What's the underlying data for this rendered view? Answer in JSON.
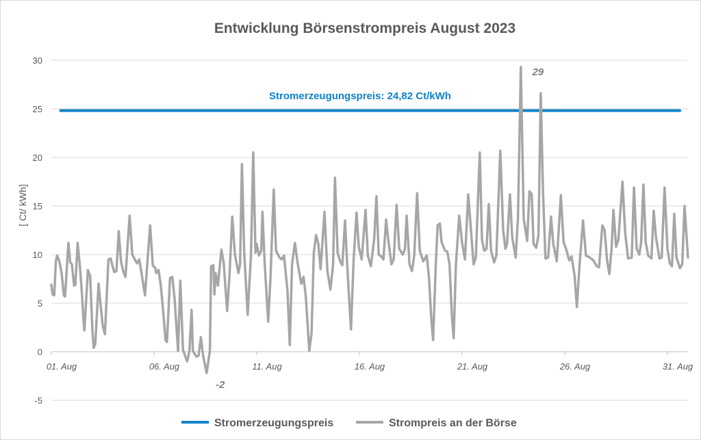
{
  "chart_data": {
    "type": "line",
    "title": "Entwicklung Börsenstrompreis August 2023",
    "ylabel": "[ Ct/ kWh]",
    "xlabel": "",
    "ylim": [
      -5,
      30
    ],
    "yticks": [
      -5,
      0,
      5,
      10,
      15,
      20,
      25,
      30
    ],
    "xlim_days": [
      0,
      31
    ],
    "xticks": [
      {
        "day": 0,
        "label": "01. Aug"
      },
      {
        "day": 5,
        "label": "06. Aug"
      },
      {
        "day": 10,
        "label": "11. Aug"
      },
      {
        "day": 15,
        "label": "16. Aug"
      },
      {
        "day": 20,
        "label": "21. Aug"
      },
      {
        "day": 25,
        "label": "26. Aug"
      },
      {
        "day": 30,
        "label": "31. Aug"
      }
    ],
    "grid": "horizontal",
    "legend_position": "bottom",
    "reference_line": {
      "name": "Stromerzeugungspreis",
      "value": 24.82,
      "label": "Stromerzeugungspreis: 24,82 Ct/kWh",
      "color": "#0f82c5"
    },
    "annotations": [
      {
        "text": "29",
        "day": 22.86,
        "value": 29.3
      },
      {
        "text": "-2",
        "day": 7.56,
        "value": -2.2
      }
    ],
    "series": [
      {
        "name": "Stromerzeugungspreis",
        "color": "#0f82c5",
        "values": [
          [
            0.45,
            24.82
          ],
          [
            30.6,
            24.82
          ]
        ]
      },
      {
        "name": "Strompreis an der Börse",
        "color": "#a6a6a6",
        "values": [
          [
            0,
            6.9
          ],
          [
            0.06,
            5.9
          ],
          [
            0.14,
            5.8
          ],
          [
            0.22,
            9.3
          ],
          [
            0.28,
            9.9
          ],
          [
            0.39,
            9.3
          ],
          [
            0.5,
            8.1
          ],
          [
            0.61,
            5.8
          ],
          [
            0.67,
            5.7
          ],
          [
            0.83,
            11.2
          ],
          [
            0.92,
            9.2
          ],
          [
            1.0,
            9.0
          ],
          [
            1.11,
            6.8
          ],
          [
            1.17,
            6.9
          ],
          [
            1.28,
            11.2
          ],
          [
            1.39,
            8.8
          ],
          [
            1.5,
            5.7
          ],
          [
            1.56,
            3.4
          ],
          [
            1.61,
            2.2
          ],
          [
            1.78,
            8.4
          ],
          [
            1.89,
            7.8
          ],
          [
            2.0,
            2.2
          ],
          [
            2.06,
            0.4
          ],
          [
            2.14,
            0.8
          ],
          [
            2.3,
            7.0
          ],
          [
            2.39,
            5.0
          ],
          [
            2.5,
            2.7
          ],
          [
            2.61,
            1.8
          ],
          [
            2.78,
            9.5
          ],
          [
            2.89,
            9.6
          ],
          [
            2.97,
            8.9
          ],
          [
            3.06,
            8.2
          ],
          [
            3.17,
            8.3
          ],
          [
            3.28,
            12.4
          ],
          [
            3.39,
            9.3
          ],
          [
            3.5,
            8.3
          ],
          [
            3.61,
            7.7
          ],
          [
            3.81,
            14.0
          ],
          [
            3.94,
            10.0
          ],
          [
            4.06,
            9.5
          ],
          [
            4.17,
            9.1
          ],
          [
            4.28,
            9.5
          ],
          [
            4.39,
            8.1
          ],
          [
            4.56,
            5.8
          ],
          [
            4.67,
            9.0
          ],
          [
            4.81,
            13.0
          ],
          [
            4.94,
            8.9
          ],
          [
            5.06,
            8.6
          ],
          [
            5.11,
            8.1
          ],
          [
            5.22,
            8.4
          ],
          [
            5.33,
            6.8
          ],
          [
            5.44,
            4.3
          ],
          [
            5.56,
            1.2
          ],
          [
            5.63,
            1.0
          ],
          [
            5.78,
            7.6
          ],
          [
            5.89,
            7.7
          ],
          [
            6.0,
            5.5
          ],
          [
            6.17,
            0.1
          ],
          [
            6.28,
            7.3
          ],
          [
            6.41,
            0.2
          ],
          [
            6.61,
            -1.0
          ],
          [
            6.72,
            0
          ],
          [
            6.83,
            4.3
          ],
          [
            6.89,
            0.1
          ],
          [
            7.06,
            -0.5
          ],
          [
            7.17,
            -0.4
          ],
          [
            7.28,
            1.5
          ],
          [
            7.39,
            -0.4
          ],
          [
            7.56,
            -2.2
          ],
          [
            7.72,
            0.1
          ],
          [
            7.78,
            8.8
          ],
          [
            7.89,
            8.9
          ],
          [
            7.94,
            5.9
          ],
          [
            8.0,
            8.1
          ],
          [
            8.11,
            6.8
          ],
          [
            8.28,
            10.5
          ],
          [
            8.39,
            9.2
          ],
          [
            8.56,
            4.2
          ],
          [
            8.67,
            7.7
          ],
          [
            8.81,
            13.9
          ],
          [
            8.94,
            10.0
          ],
          [
            9.11,
            8.1
          ],
          [
            9.19,
            9.0
          ],
          [
            9.28,
            19.3
          ],
          [
            9.39,
            10.2
          ],
          [
            9.56,
            3.8
          ],
          [
            9.72,
            9.9
          ],
          [
            9.83,
            20.5
          ],
          [
            9.94,
            10.2
          ],
          [
            10.0,
            11.1
          ],
          [
            10.11,
            9.9
          ],
          [
            10.22,
            10.4
          ],
          [
            10.28,
            14.4
          ],
          [
            10.39,
            9.0
          ],
          [
            10.56,
            3.1
          ],
          [
            10.67,
            7.6
          ],
          [
            10.83,
            16.7
          ],
          [
            10.94,
            10.4
          ],
          [
            11.11,
            9.7
          ],
          [
            11.22,
            9.5
          ],
          [
            11.33,
            9.9
          ],
          [
            11.5,
            6.2
          ],
          [
            11.61,
            0.7
          ],
          [
            11.72,
            9.0
          ],
          [
            11.86,
            11.2
          ],
          [
            12.0,
            9.0
          ],
          [
            12.17,
            7.0
          ],
          [
            12.28,
            7.7
          ],
          [
            12.39,
            5.7
          ],
          [
            12.56,
            0.1
          ],
          [
            12.67,
            1.9
          ],
          [
            12.78,
            10.2
          ],
          [
            12.89,
            12.0
          ],
          [
            13.0,
            11.1
          ],
          [
            13.11,
            8.5
          ],
          [
            13.3,
            14.4
          ],
          [
            13.44,
            8.3
          ],
          [
            13.59,
            6.4
          ],
          [
            13.72,
            9.0
          ],
          [
            13.81,
            17.9
          ],
          [
            13.94,
            10.2
          ],
          [
            14.06,
            9.3
          ],
          [
            14.17,
            8.9
          ],
          [
            14.3,
            13.5
          ],
          [
            14.44,
            7.6
          ],
          [
            14.59,
            2.3
          ],
          [
            14.72,
            9.5
          ],
          [
            14.86,
            14.3
          ],
          [
            14.97,
            10.8
          ],
          [
            15.11,
            9.5
          ],
          [
            15.3,
            14.6
          ],
          [
            15.41,
            9.9
          ],
          [
            15.56,
            8.8
          ],
          [
            15.72,
            11.6
          ],
          [
            15.83,
            16.0
          ],
          [
            15.94,
            10.0
          ],
          [
            16.06,
            9.8
          ],
          [
            16.17,
            9.5
          ],
          [
            16.3,
            13.6
          ],
          [
            16.39,
            11.8
          ],
          [
            16.56,
            9.0
          ],
          [
            16.67,
            9.5
          ],
          [
            16.81,
            15.1
          ],
          [
            16.94,
            10.6
          ],
          [
            17.11,
            10.0
          ],
          [
            17.22,
            10.6
          ],
          [
            17.3,
            14.0
          ],
          [
            17.44,
            9.0
          ],
          [
            17.56,
            8.3
          ],
          [
            17.67,
            9.9
          ],
          [
            17.81,
            16.3
          ],
          [
            17.94,
            10.4
          ],
          [
            18.11,
            9.3
          ],
          [
            18.28,
            9.9
          ],
          [
            18.39,
            7.6
          ],
          [
            18.5,
            3.4
          ],
          [
            18.59,
            1.2
          ],
          [
            18.72,
            9.0
          ],
          [
            18.81,
            13.0
          ],
          [
            18.92,
            13.2
          ],
          [
            19.0,
            11.3
          ],
          [
            19.17,
            10.4
          ],
          [
            19.28,
            10.3
          ],
          [
            19.39,
            9.0
          ],
          [
            19.5,
            3.8
          ],
          [
            19.59,
            1.4
          ],
          [
            19.7,
            9.0
          ],
          [
            19.86,
            14.0
          ],
          [
            20.0,
            11.2
          ],
          [
            20.14,
            9.5
          ],
          [
            20.3,
            16.2
          ],
          [
            20.56,
            9.0
          ],
          [
            20.67,
            9.7
          ],
          [
            20.86,
            20.5
          ],
          [
            20.97,
            11.5
          ],
          [
            21.08,
            10.4
          ],
          [
            21.19,
            10.6
          ],
          [
            21.3,
            15.2
          ],
          [
            21.41,
            10.4
          ],
          [
            21.56,
            9.2
          ],
          [
            21.67,
            9.9
          ],
          [
            21.86,
            20.7
          ],
          [
            22.0,
            12.5
          ],
          [
            22.11,
            10.6
          ],
          [
            22.19,
            11.1
          ],
          [
            22.33,
            16.2
          ],
          [
            22.44,
            11.8
          ],
          [
            22.61,
            9.7
          ],
          [
            22.72,
            13.7
          ],
          [
            22.86,
            29.3
          ],
          [
            23.0,
            13.7
          ],
          [
            23.17,
            11.4
          ],
          [
            23.28,
            16.5
          ],
          [
            23.39,
            16.2
          ],
          [
            23.48,
            11.1
          ],
          [
            23.61,
            10.7
          ],
          [
            23.72,
            12.0
          ],
          [
            23.83,
            26.6
          ],
          [
            23.94,
            16.5
          ],
          [
            24.06,
            9.6
          ],
          [
            24.19,
            9.7
          ],
          [
            24.33,
            13.9
          ],
          [
            24.44,
            11.1
          ],
          [
            24.61,
            9.3
          ],
          [
            24.81,
            16.1
          ],
          [
            24.94,
            11.3
          ],
          [
            25.06,
            10.6
          ],
          [
            25.22,
            9.4
          ],
          [
            25.33,
            9.8
          ],
          [
            25.48,
            7.8
          ],
          [
            25.59,
            4.6
          ],
          [
            25.72,
            9.0
          ],
          [
            25.89,
            13.5
          ],
          [
            26.03,
            9.9
          ],
          [
            26.22,
            9.7
          ],
          [
            26.39,
            9.4
          ],
          [
            26.56,
            8.8
          ],
          [
            26.67,
            8.7
          ],
          [
            26.83,
            13.0
          ],
          [
            26.94,
            12.5
          ],
          [
            27.06,
            9.4
          ],
          [
            27.17,
            8.0
          ],
          [
            27.28,
            10.6
          ],
          [
            27.37,
            14.6
          ],
          [
            27.5,
            10.8
          ],
          [
            27.61,
            11.5
          ],
          [
            27.81,
            17.5
          ],
          [
            27.94,
            12.3
          ],
          [
            28.08,
            9.6
          ],
          [
            28.26,
            9.7
          ],
          [
            28.37,
            16.9
          ],
          [
            28.5,
            10.6
          ],
          [
            28.63,
            10.0
          ],
          [
            28.72,
            11.3
          ],
          [
            28.83,
            17.2
          ],
          [
            28.94,
            11.3
          ],
          [
            29.06,
            9.9
          ],
          [
            29.22,
            9.6
          ],
          [
            29.33,
            14.5
          ],
          [
            29.44,
            11.8
          ],
          [
            29.61,
            9.6
          ],
          [
            29.72,
            9.7
          ],
          [
            29.86,
            16.9
          ],
          [
            30.0,
            10.6
          ],
          [
            30.11,
            9.1
          ],
          [
            30.22,
            8.8
          ],
          [
            30.33,
            14.2
          ],
          [
            30.44,
            9.7
          ],
          [
            30.61,
            8.6
          ],
          [
            30.72,
            9.0
          ],
          [
            30.83,
            15.0
          ],
          [
            31.0,
            9.7
          ]
        ]
      }
    ]
  }
}
